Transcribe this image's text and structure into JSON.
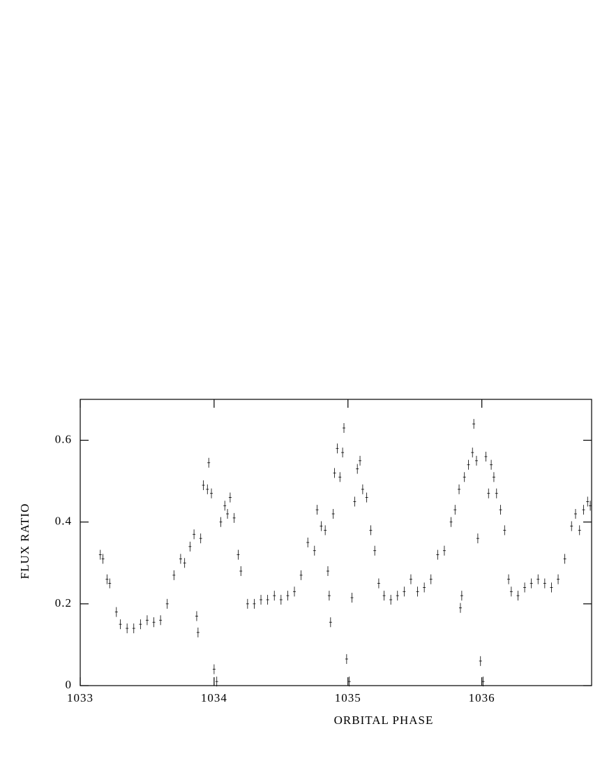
{
  "chart_data": {
    "type": "scatter",
    "x_label": "ORBITAL PHASE",
    "y_label": "FLUX RATIO",
    "xlim": [
      1033,
      1036.82
    ],
    "ylim": [
      0,
      0.7
    ],
    "xticks": [
      1033,
      1034,
      1035,
      1036
    ],
    "yticks": [
      0,
      0.2,
      0.4,
      0.6
    ],
    "color": "#000000",
    "yerr": 0.012,
    "x": [
      1033.15,
      1033.17,
      1033.2,
      1033.22,
      1033.27,
      1033.3,
      1033.35,
      1033.4,
      1033.45,
      1033.5,
      1033.55,
      1033.6,
      1033.65,
      1033.7,
      1033.75,
      1033.78,
      1033.82,
      1033.85,
      1033.87,
      1033.88,
      1033.9,
      1033.92,
      1033.95,
      1033.96,
      1033.98,
      1034.0,
      1034.02,
      1034.05,
      1034.08,
      1034.1,
      1034.12,
      1034.15,
      1034.18,
      1034.2,
      1034.25,
      1034.3,
      1034.35,
      1034.4,
      1034.45,
      1034.5,
      1034.55,
      1034.6,
      1034.65,
      1034.7,
      1034.75,
      1034.77,
      1034.8,
      1034.83,
      1034.85,
      1034.86,
      1034.87,
      1034.89,
      1034.9,
      1034.92,
      1034.94,
      1034.96,
      1034.97,
      1034.99,
      1035.01,
      1035.03,
      1035.05,
      1035.07,
      1035.09,
      1035.11,
      1035.14,
      1035.17,
      1035.2,
      1035.23,
      1035.27,
      1035.32,
      1035.37,
      1035.42,
      1035.47,
      1035.52,
      1035.57,
      1035.62,
      1035.67,
      1035.72,
      1035.77,
      1035.8,
      1035.83,
      1035.84,
      1035.85,
      1035.87,
      1035.9,
      1035.93,
      1035.94,
      1035.96,
      1035.97,
      1035.99,
      1036.01,
      1036.03,
      1036.05,
      1036.07,
      1036.09,
      1036.11,
      1036.14,
      1036.17,
      1036.2,
      1036.22,
      1036.27,
      1036.32,
      1036.37,
      1036.42,
      1036.47,
      1036.52,
      1036.57,
      1036.62,
      1036.67,
      1036.7,
      1036.73,
      1036.76,
      1036.79,
      1036.81
    ],
    "y": [
      0.32,
      0.31,
      0.26,
      0.25,
      0.18,
      0.15,
      0.14,
      0.14,
      0.15,
      0.16,
      0.155,
      0.16,
      0.2,
      0.27,
      0.31,
      0.3,
      0.34,
      0.37,
      0.17,
      0.13,
      0.36,
      0.49,
      0.48,
      0.545,
      0.47,
      0.04,
      0.01,
      0.4,
      0.44,
      0.42,
      0.46,
      0.41,
      0.32,
      0.28,
      0.2,
      0.2,
      0.21,
      0.21,
      0.22,
      0.21,
      0.22,
      0.23,
      0.27,
      0.35,
      0.33,
      0.43,
      0.39,
      0.38,
      0.28,
      0.22,
      0.155,
      0.42,
      0.52,
      0.58,
      0.51,
      0.57,
      0.63,
      0.065,
      0.01,
      0.215,
      0.45,
      0.53,
      0.55,
      0.48,
      0.46,
      0.38,
      0.33,
      0.25,
      0.22,
      0.21,
      0.22,
      0.23,
      0.26,
      0.23,
      0.24,
      0.26,
      0.32,
      0.33,
      0.4,
      0.43,
      0.48,
      0.19,
      0.22,
      0.51,
      0.54,
      0.57,
      0.64,
      0.55,
      0.36,
      0.06,
      0.01,
      0.56,
      0.47,
      0.54,
      0.51,
      0.47,
      0.43,
      0.38,
      0.26,
      0.23,
      0.22,
      0.24,
      0.25,
      0.26,
      0.25,
      0.24,
      0.26,
      0.31,
      0.39,
      0.42,
      0.38,
      0.43,
      0.45,
      0.44
    ]
  }
}
